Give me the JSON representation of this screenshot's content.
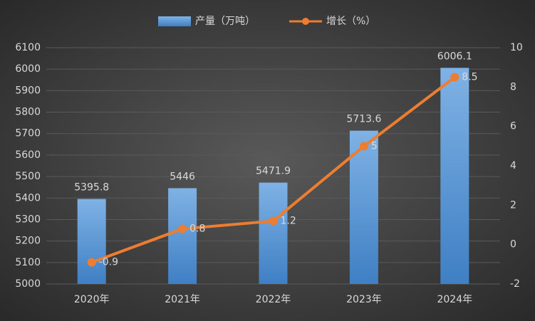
{
  "chart_data": {
    "type": "bar",
    "categories": [
      "2020年",
      "2021年",
      "2022年",
      "2023年",
      "2024年"
    ],
    "series": [
      {
        "name": "产量（万吨）",
        "type": "bar",
        "color": "#5b9bd5",
        "values": [
          5395.8,
          5446,
          5471.9,
          5713.6,
          6006.1
        ]
      },
      {
        "name": "增长（%）",
        "type": "line",
        "axis": "y2",
        "color": "#ed7d31",
        "values": [
          -0.9,
          0.8,
          1.2,
          5,
          8.5
        ]
      }
    ],
    "ylim": [
      5000,
      6100
    ],
    "yticks": [
      5000,
      5100,
      5200,
      5300,
      5400,
      5500,
      5600,
      5700,
      5800,
      5900,
      6000,
      6100
    ],
    "y2lim": [
      -2,
      10
    ],
    "y2ticks": [
      -2,
      0,
      2,
      4,
      6,
      8,
      10
    ],
    "grid": true
  }
}
